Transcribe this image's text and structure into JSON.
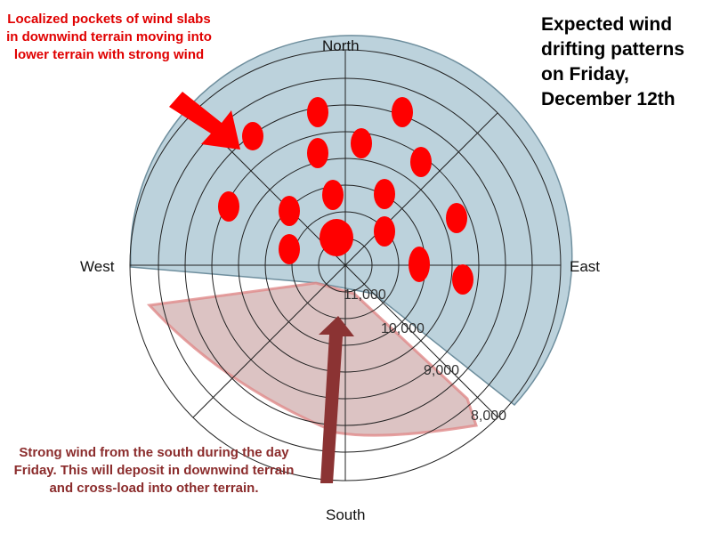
{
  "title": "Expected wind drifting patterns on Friday, December 12th",
  "directions": {
    "north": "North",
    "east": "East",
    "south": "South",
    "west": "West"
  },
  "elevations": [
    "11,000",
    "10,000",
    "9,000",
    "8,000"
  ],
  "annotations": {
    "top_left": "Localized pockets of wind slabs in downwind terrain moving into lower terrain with strong wind",
    "bottom_left": "Strong wind from the south during the day Friday.  This will deposit in downwind terrain and cross-load into other terrain."
  }
}
